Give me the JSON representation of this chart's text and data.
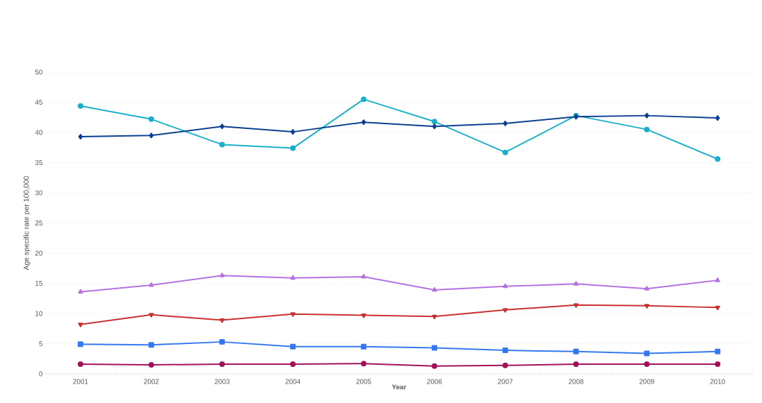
{
  "chart_data": {
    "type": "line",
    "xlabel": "Year",
    "ylabel": "Age specific rate per 100,000",
    "categories": [
      "2001",
      "2002",
      "2003",
      "2004",
      "2005",
      "2006",
      "2007",
      "2008",
      "2009",
      "2010"
    ],
    "ylim": [
      0,
      50
    ],
    "yticks": [
      0,
      5,
      10,
      15,
      20,
      25,
      30,
      35,
      40,
      45,
      50
    ],
    "grid": "y",
    "line_style": "solid",
    "series": [
      {
        "color": "#0b3f8f",
        "marker": "diamond",
        "values": [
          39.3,
          39.5,
          41.0,
          40.1,
          41.7,
          41.0,
          41.5,
          42.6,
          42.8,
          42.4
        ]
      },
      {
        "color": "#1ab0cc",
        "marker": "circle",
        "values": [
          44.4,
          42.2,
          38.0,
          37.4,
          45.5,
          41.8,
          36.7,
          42.8,
          40.5,
          35.6
        ]
      },
      {
        "color": "#b471e2",
        "marker": "triangle",
        "values": [
          13.6,
          14.7,
          16.3,
          15.9,
          16.1,
          13.9,
          14.5,
          14.9,
          14.1,
          15.5
        ]
      },
      {
        "color": "#c93030",
        "marker": "triangle-down",
        "values": [
          8.2,
          9.8,
          8.9,
          9.9,
          9.7,
          9.5,
          10.6,
          11.4,
          11.3,
          11.0
        ]
      },
      {
        "color": "#3478f0",
        "marker": "square",
        "values": [
          4.9,
          4.8,
          5.3,
          4.5,
          4.5,
          4.3,
          3.9,
          3.7,
          3.4,
          3.7
        ]
      },
      {
        "color": "#a3105a",
        "marker": "circle",
        "values": [
          1.6,
          1.5,
          1.6,
          1.6,
          1.7,
          1.3,
          1.4,
          1.6,
          1.6,
          1.6
        ]
      }
    ]
  }
}
